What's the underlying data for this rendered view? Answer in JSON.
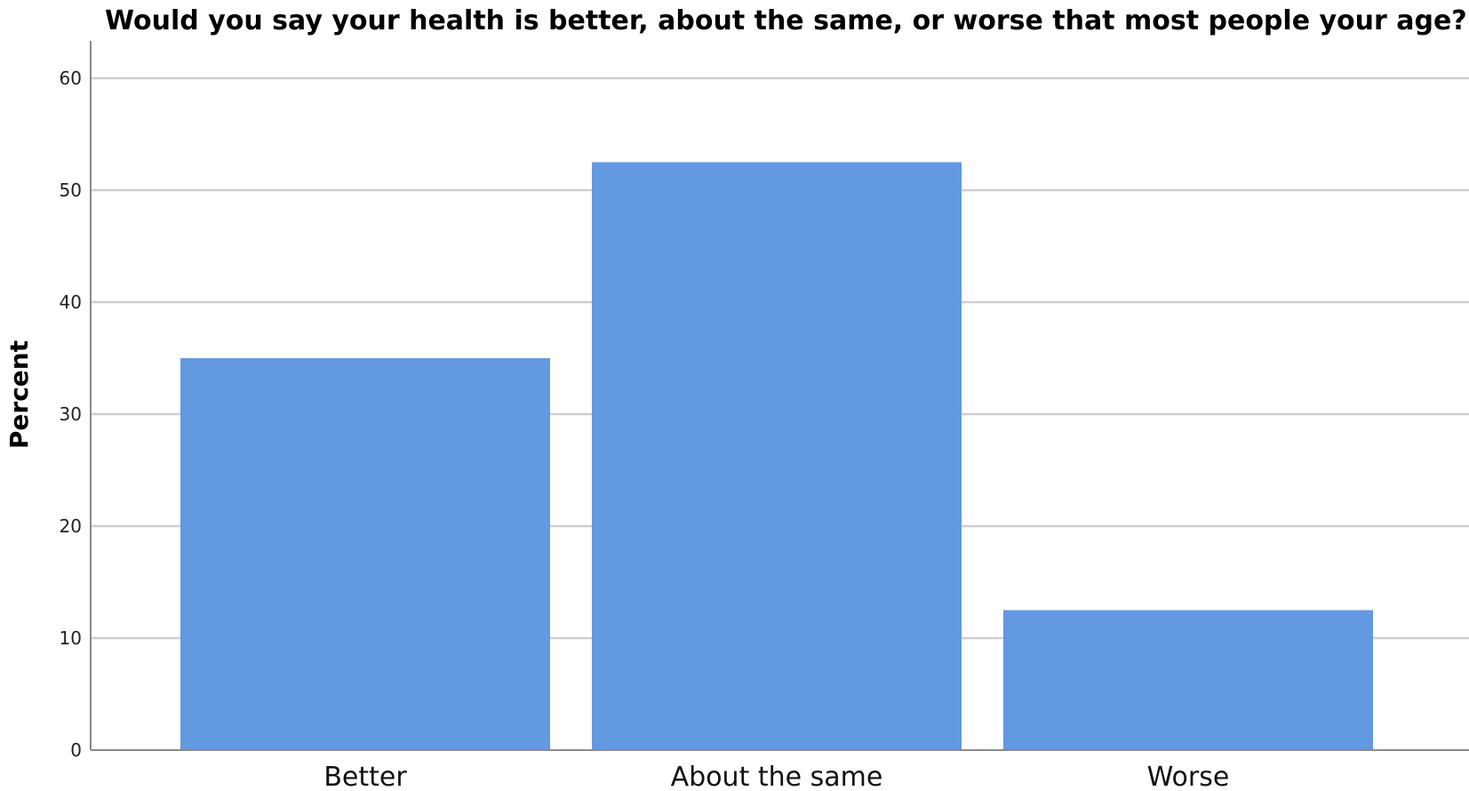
{
  "chart_data": {
    "type": "bar",
    "title": "Would you say your health is better, about the same, or worse that most people your age?",
    "xlabel": "",
    "ylabel": "Percent",
    "categories": [
      "Better",
      "About the same",
      "Worse"
    ],
    "values": [
      35.0,
      52.5,
      12.5
    ],
    "ylim": [
      0,
      60
    ],
    "yticks": [
      0,
      10,
      20,
      30,
      40,
      50,
      60
    ],
    "ytick_labels": [
      "0",
      "10",
      "20",
      "30",
      "40",
      "50",
      "60"
    ],
    "grid": true,
    "legend": "none",
    "bar_color": "#6399E0"
  }
}
